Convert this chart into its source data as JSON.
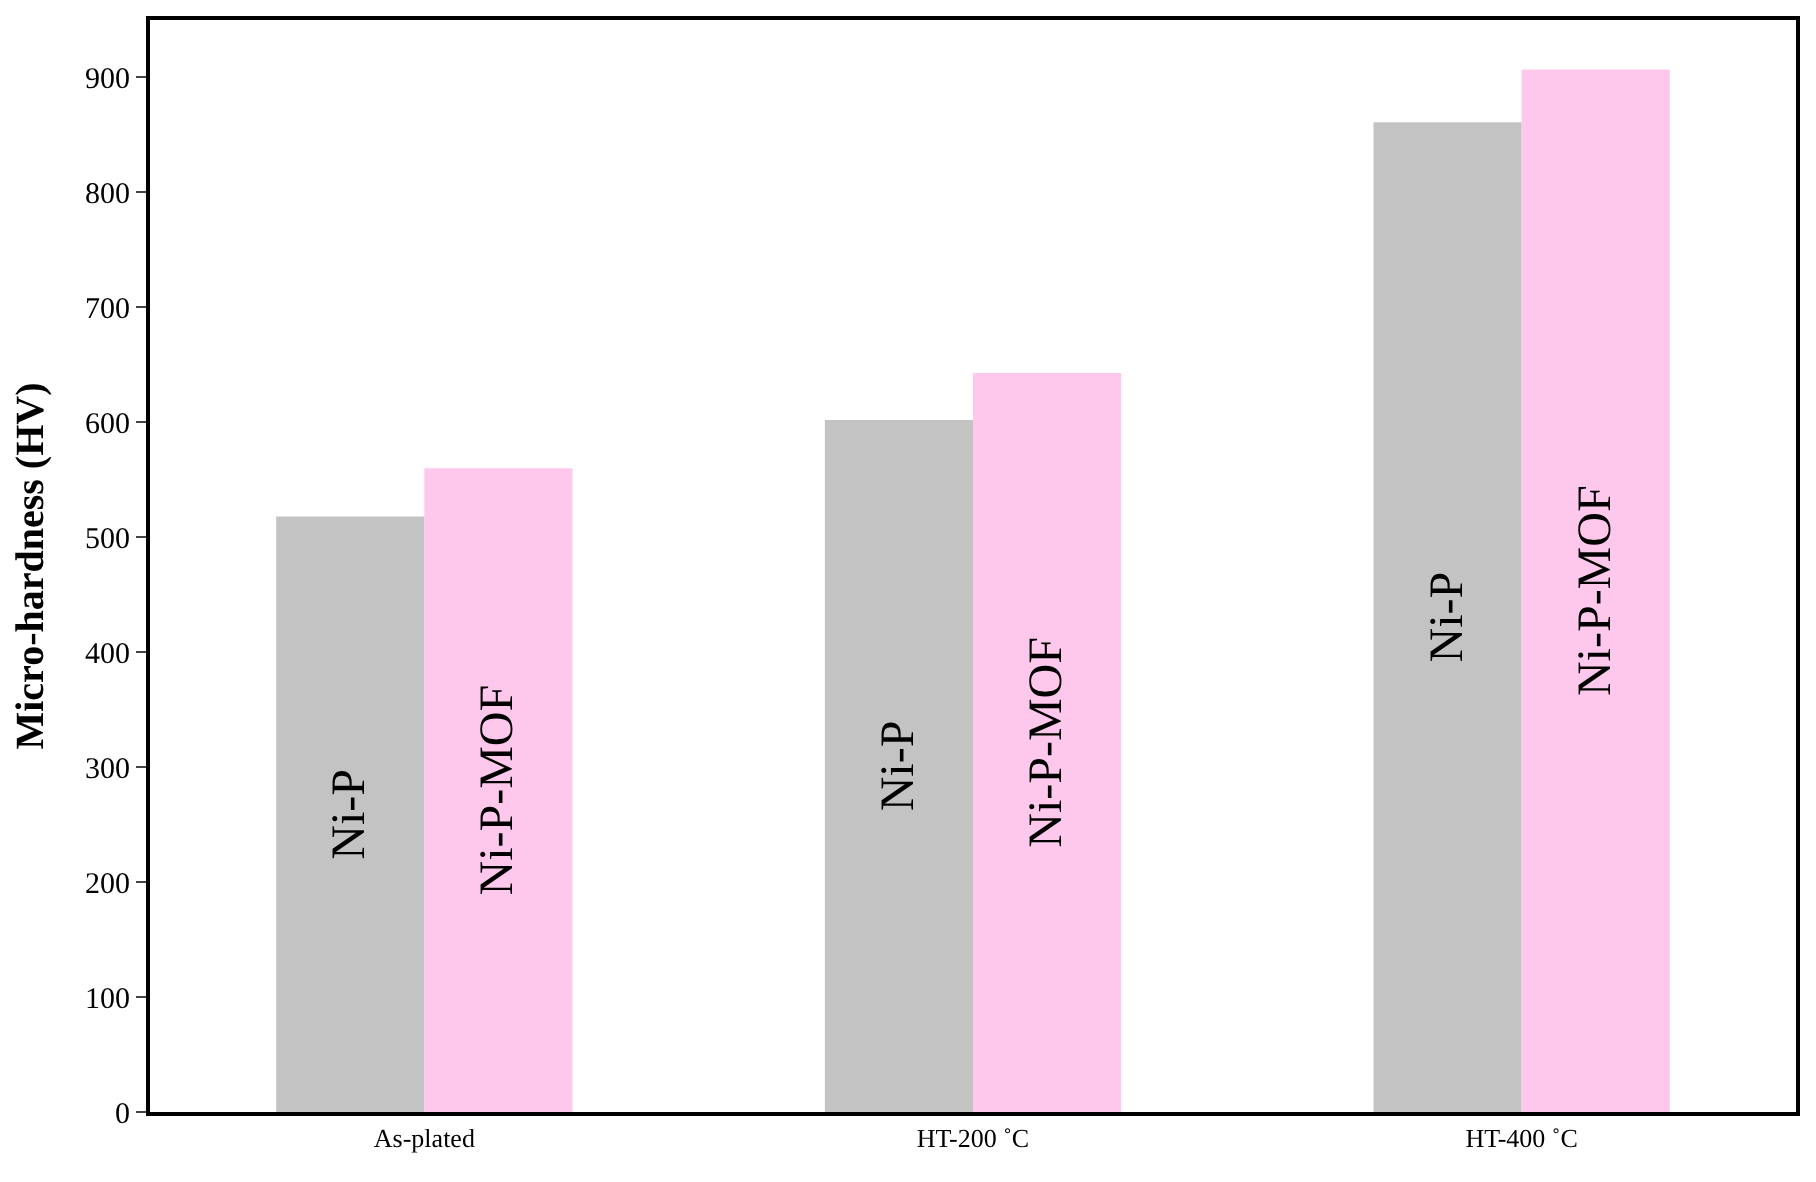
{
  "chart_data": {
    "type": "bar",
    "ylabel": "Micro-hardness (HV)",
    "categories": [
      "As-plated",
      "HT-200 ˚C",
      "HT-400 ˚C"
    ],
    "series": [
      {
        "name": "Ni-P",
        "color": "#c3c3c3",
        "values": [
          518,
          602,
          861
        ]
      },
      {
        "name": "Ni-P-MOF",
        "color": "#fdc8ec",
        "values": [
          560,
          643,
          907
        ]
      }
    ],
    "ylim": [
      0,
      950
    ],
    "yticks": [
      0,
      100,
      200,
      300,
      400,
      500,
      600,
      700,
      800,
      900
    ]
  }
}
